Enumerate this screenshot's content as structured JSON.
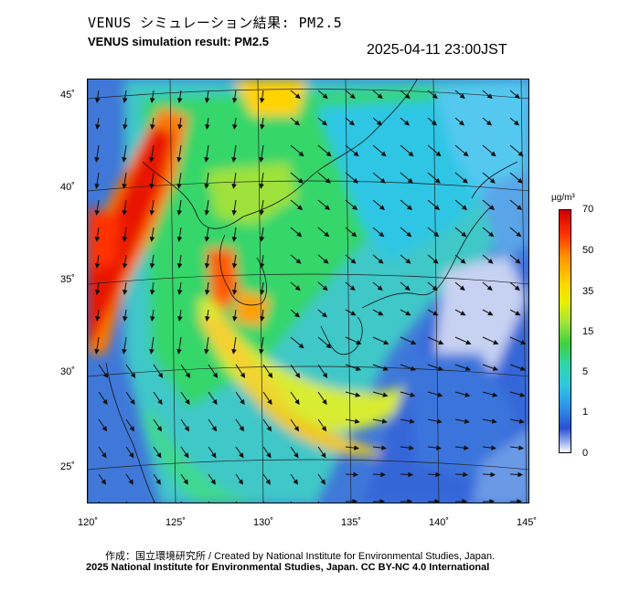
{
  "title_jp": "VENUS シミュレーション結果: PM2.5",
  "title_en": "VENUS simulation result: PM2.5",
  "timestamp": "2025-04-11 23:00JST",
  "lat_labels": [
    "45˚",
    "40˚",
    "35˚",
    "30˚",
    "25˚"
  ],
  "lon_labels": [
    "120˚",
    "125˚",
    "130˚",
    "135˚",
    "140˚",
    "145˚"
  ],
  "colorbar": {
    "unit": "µg/m³",
    "ticks": [
      "70",
      "50",
      "35",
      "15",
      "5",
      "1",
      "0"
    ],
    "colors": [
      "#cc0000",
      "#ff9900",
      "#ffd300",
      "#40d040",
      "#30c8e0",
      "#2a4fcf",
      "#ffffff"
    ]
  },
  "credits": {
    "line1": "作成：国立環境研究所 / Created by National Institute for Environmental Studies, Japan.",
    "line2": "2025 National Institute for Environmental Studies, Japan. CC BY-NC 4.0 International"
  }
}
